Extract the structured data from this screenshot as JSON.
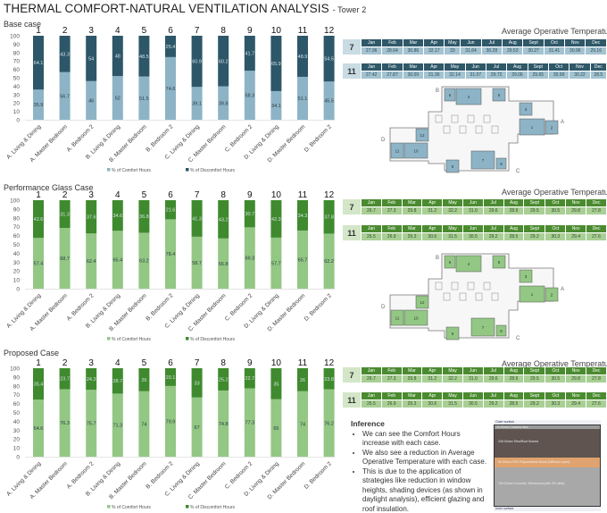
{
  "title": {
    "main": "THERMAL COMFORT-NATURAL VENTILATION ANALYSIS",
    "sub": "- Tower 2"
  },
  "room_numbers": [
    "1",
    "2",
    "3",
    "4",
    "5",
    "6",
    "7",
    "8",
    "9",
    "10",
    "11",
    "12"
  ],
  "plan_labels": {
    "wings": [
      "A",
      "B",
      "C",
      "D"
    ]
  },
  "colors": {
    "base_comfort": "#8db4c6",
    "base_discomfort": "#2d5769",
    "base_table_header": "#2f5869",
    "base_table_values": "#a3c3d1",
    "base_row_label": "#c9dbe3",
    "green_comfort": "#93c784",
    "green_discomfort": "#3f8a2e",
    "green_table_header": "#4b8b30",
    "green_table_values": "#a9cf95",
    "green_row_label": "#d3e6c8"
  },
  "chart_data": [
    {
      "type": "bar",
      "stacked": true,
      "title": "Base case",
      "categories": [
        "A. Living & Dining",
        "A. Master Bedroom",
        "A. Bedroom 2",
        "B. Living & Dining",
        "B. Master Bedroom",
        "B. Bedroom 2",
        "C. Living & Dining",
        "C. Master Bedroom",
        "C. Bedroom 2",
        "D. Living & Dining",
        "D. Master Bedroom",
        "D. Bedroom 2"
      ],
      "yticks": [
        0,
        10,
        20,
        30,
        40,
        50,
        60,
        70,
        80,
        90,
        100
      ],
      "ylim": [
        0,
        100
      ],
      "legend": "bottom",
      "series": [
        {
          "name": "% of Comfort Hours",
          "values": [
            35.9,
            56.7,
            46,
            52,
            51.5,
            74.6,
            39.1,
            39.8,
            58.3,
            34.1,
            51.1,
            45.5
          ]
        },
        {
          "name": "% of Discomfort Hours",
          "values": [
            64.1,
            43.3,
            54,
            48,
            48.5,
            25.4,
            60.9,
            60.2,
            41.7,
            65.9,
            48.9,
            54.5
          ]
        }
      ]
    },
    {
      "type": "bar",
      "stacked": true,
      "title": "Performance Glass Case",
      "categories": [
        "A. Living & Dining",
        "A. Master Bedroom",
        "A. Bedroom 2",
        "B. Living & Dining",
        "B. Master Bedroom",
        "B. Bedroom 2",
        "C. Living & Dining",
        "C. Master Bedroom",
        "C. Bedroom 2",
        "D. Living & Dining",
        "D. Master Bedroom",
        "D. Bedroom 2"
      ],
      "yticks": [
        0,
        10,
        20,
        30,
        40,
        50,
        60,
        70,
        80,
        90,
        100
      ],
      "ylim": [
        0,
        100
      ],
      "legend": "bottom",
      "series": [
        {
          "name": "% of Comfort Hours",
          "values": [
            57.4,
            68.7,
            62.4,
            65.4,
            63.2,
            78.4,
            58.7,
            56.8,
            69.3,
            57.7,
            65.7,
            62.2
          ]
        },
        {
          "name": "% of Discomfort Hours",
          "values": [
            42.6,
            31.3,
            37.6,
            34.6,
            36.8,
            21.6,
            41.3,
            43.2,
            30.7,
            42.3,
            34.3,
            37.8
          ]
        }
      ]
    },
    {
      "type": "bar",
      "stacked": true,
      "title": "Proposed Case",
      "categories": [
        "A. Living & Dining",
        "A. Master Bedroom",
        "A. Bedroom 2",
        "B. Living & Dining",
        "B. Master Bedroom",
        "B. Bedroom 2",
        "C. Living & Dining",
        "C. Master Bedroom",
        "C. Bedroom 2",
        "D. Living & Dining",
        "D. Master Bedroom",
        "D. Bedroom 2"
      ],
      "yticks": [
        0,
        10,
        20,
        30,
        40,
        50,
        60,
        70,
        80,
        90,
        100
      ],
      "ylim": [
        0,
        100
      ],
      "legend": "bottom",
      "series": [
        {
          "name": "% of Comfort Hours",
          "values": [
            64.6,
            76.3,
            75.7,
            71.3,
            74,
            79.9,
            67,
            74.8,
            77.3,
            65,
            74,
            76.2
          ]
        },
        {
          "name": "% of Discomfort Hours",
          "values": [
            35.4,
            23.7,
            24.3,
            28.7,
            26,
            20.1,
            33,
            25.2,
            22.7,
            35,
            26,
            23.8
          ]
        }
      ]
    }
  ],
  "temperature_tables": [
    {
      "title": "Average Operative Temperature",
      "months": [
        "Jan",
        "Feb",
        "Mar",
        "Apr",
        "May",
        "Jun",
        "Jul",
        "Aug",
        "Sept",
        "Oct",
        "Nov",
        "Dec"
      ],
      "rows": [
        {
          "room": "7",
          "values": [
            "27.96",
            "28.64",
            "30.86",
            "32.17",
            "33",
            "31.64",
            "30.28",
            "29.53",
            "30.27",
            "31.41",
            "30.96",
            "29.16"
          ]
        },
        {
          "room": "11",
          "values": [
            "27.42",
            "27.87",
            "30.09",
            "31.39",
            "32.14",
            "31.07",
            "29.72",
            "29.06",
            "29.65",
            "30.99",
            "30.22",
            "28.5"
          ]
        }
      ]
    },
    {
      "title": "Average Operative Temperature",
      "months": [
        "Jan",
        "Feb",
        "Mar",
        "Apr",
        "May",
        "Jun",
        "Jul",
        "Aug",
        "Sept",
        "Oct",
        "Nov",
        "Dec"
      ],
      "rows": [
        {
          "room": "7",
          "values": [
            "26.7",
            "27.3",
            "29.8",
            "31.2",
            "32.2",
            "31.0",
            "29.6",
            "28.9",
            "29.5",
            "30.5",
            "29.8",
            "27.8"
          ]
        },
        {
          "room": "11",
          "values": [
            "26.5",
            "26.9",
            "29.3",
            "30.6",
            "31.5",
            "30.5",
            "29.2",
            "28.5",
            "29.2",
            "30.3",
            "29.4",
            "27.6"
          ]
        }
      ]
    },
    {
      "title": "Average Operative Temperature",
      "months": [
        "Jan",
        "Feb",
        "Mar",
        "Apr",
        "May",
        "Jun",
        "Jul",
        "Aug",
        "Sept",
        "Oct",
        "Nov",
        "Dec"
      ],
      "rows": [
        {
          "room": "7",
          "values": [
            "26.7",
            "27.3",
            "29.8",
            "31.2",
            "32.2",
            "31.0",
            "29.6",
            "28.9",
            "29.5",
            "30.5",
            "29.8",
            "27.8"
          ]
        },
        {
          "room": "11",
          "values": [
            "26.5",
            "26.9",
            "29.3",
            "30.6",
            "31.5",
            "30.5",
            "29.2",
            "28.5",
            "29.2",
            "30.3",
            "29.4",
            "27.6"
          ]
        }
      ]
    }
  ],
  "inference": {
    "heading": "Inference",
    "points": [
      "We can see the Comfort Hours increase with each case.",
      "We also see a reduction in Average Operative Temperature with each case.",
      "This is due to the application of strategies like reduction in window heights, shading devices (as shown in daylight analysis), efficient glazing and roof insulation."
    ]
  },
  "roof_section": {
    "outer": "Outer surface",
    "layers": [
      "20.00mm Ceramic tiles",
      "100.00mm Tiles/Roof Screed",
      "50.00mm PUR Polyurethane Board (Diffusion open)",
      "150.00mm Concrete, Reinforced (with 2% steel)"
    ],
    "inner": "Inner surface"
  }
}
